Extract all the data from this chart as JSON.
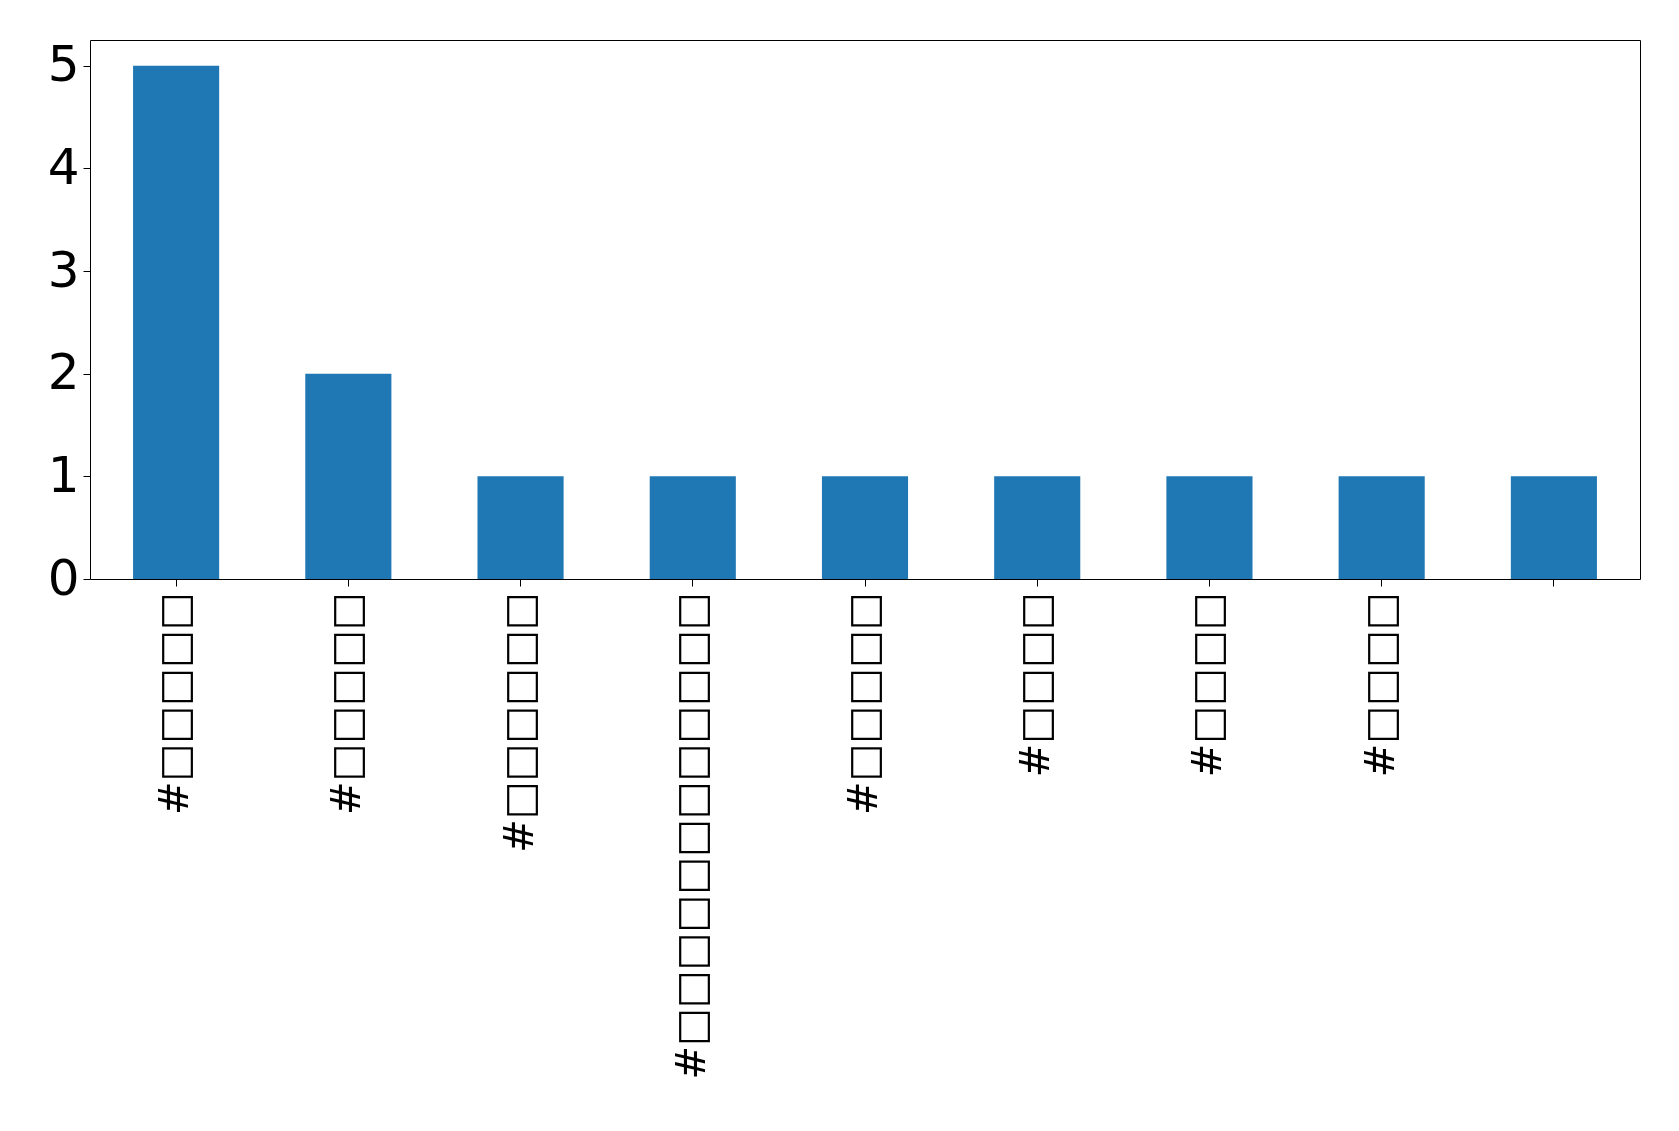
{
  "chart_data": {
    "type": "bar",
    "categories": [
      "#□□□□□",
      "#□□□□□",
      "#□□□□□□",
      "#□□□□□□□□□□□□",
      "#□□□□□",
      "#□□□□",
      "#□□□□",
      "#□□□□",
      null
    ],
    "values": [
      5,
      2,
      1,
      1,
      1,
      1,
      1,
      1,
      1
    ],
    "color": "#1f77b4",
    "ylim": [
      0,
      5.25
    ],
    "yticks": [
      0,
      1,
      2,
      3,
      4,
      5
    ],
    "grid": false
  }
}
